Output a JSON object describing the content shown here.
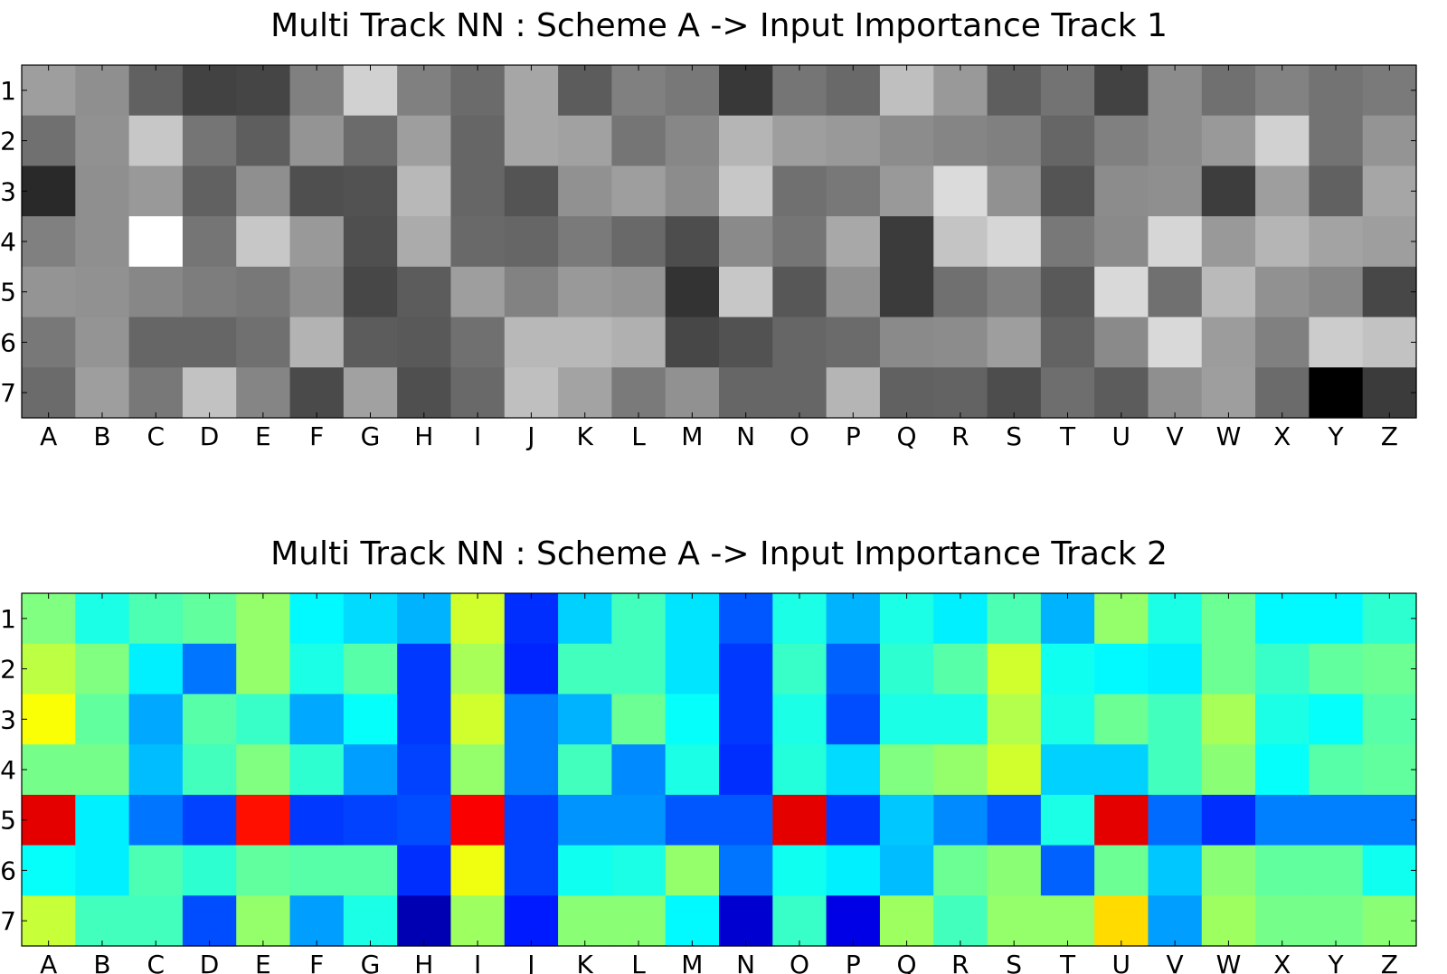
{
  "chart_data": [
    {
      "type": "heatmap",
      "title": "Multi Track NN : Scheme A -> Input Importance Track 1",
      "colormap": "gray",
      "x_categories": [
        "A",
        "B",
        "C",
        "D",
        "E",
        "F",
        "G",
        "H",
        "I",
        "J",
        "K",
        "L",
        "M",
        "N",
        "O",
        "P",
        "Q",
        "R",
        "S",
        "T",
        "U",
        "V",
        "W",
        "X",
        "Y",
        "Z"
      ],
      "y_categories": [
        "1",
        "2",
        "3",
        "4",
        "5",
        "6",
        "7"
      ],
      "value_range": [
        0,
        1
      ],
      "values": [
        [
          0.62,
          0.56,
          0.38,
          0.26,
          0.27,
          0.5,
          0.82,
          0.5,
          0.42,
          0.65,
          0.36,
          0.5,
          0.47,
          0.22,
          0.46,
          0.41,
          0.75,
          0.6,
          0.37,
          0.45,
          0.26,
          0.55,
          0.44,
          0.51,
          0.45,
          0.48
        ],
        [
          0.44,
          0.57,
          0.78,
          0.46,
          0.37,
          0.58,
          0.42,
          0.62,
          0.4,
          0.65,
          0.63,
          0.46,
          0.53,
          0.71,
          0.62,
          0.6,
          0.55,
          0.52,
          0.5,
          0.4,
          0.5,
          0.55,
          0.6,
          0.82,
          0.45,
          0.58
        ],
        [
          0.16,
          0.56,
          0.6,
          0.38,
          0.56,
          0.31,
          0.32,
          0.72,
          0.4,
          0.33,
          0.57,
          0.62,
          0.55,
          0.78,
          0.44,
          0.47,
          0.6,
          0.86,
          0.57,
          0.33,
          0.55,
          0.56,
          0.24,
          0.62,
          0.38,
          0.65
        ],
        [
          0.5,
          0.56,
          1.0,
          0.46,
          0.78,
          0.6,
          0.31,
          0.67,
          0.41,
          0.4,
          0.48,
          0.41,
          0.3,
          0.54,
          0.46,
          0.66,
          0.23,
          0.77,
          0.84,
          0.47,
          0.54,
          0.84,
          0.6,
          0.71,
          0.64,
          0.62
        ],
        [
          0.58,
          0.57,
          0.53,
          0.49,
          0.47,
          0.56,
          0.28,
          0.36,
          0.62,
          0.51,
          0.6,
          0.58,
          0.2,
          0.78,
          0.34,
          0.57,
          0.23,
          0.44,
          0.5,
          0.35,
          0.85,
          0.44,
          0.73,
          0.57,
          0.53,
          0.28
        ],
        [
          0.47,
          0.58,
          0.4,
          0.4,
          0.44,
          0.7,
          0.36,
          0.35,
          0.44,
          0.72,
          0.72,
          0.69,
          0.28,
          0.32,
          0.4,
          0.42,
          0.54,
          0.55,
          0.62,
          0.39,
          0.54,
          0.85,
          0.61,
          0.5,
          0.8,
          0.76
        ],
        [
          0.42,
          0.62,
          0.47,
          0.76,
          0.52,
          0.29,
          0.63,
          0.31,
          0.41,
          0.75,
          0.64,
          0.48,
          0.57,
          0.4,
          0.4,
          0.71,
          0.38,
          0.39,
          0.3,
          0.43,
          0.36,
          0.56,
          0.62,
          0.42,
          0.0,
          0.23
        ]
      ]
    },
    {
      "type": "heatmap",
      "title": "Multi Track NN : Scheme A -> Input Importance Track 2",
      "colormap": "jet",
      "x_categories": [
        "A",
        "B",
        "C",
        "D",
        "E",
        "F",
        "G",
        "H",
        "I",
        "J",
        "K",
        "L",
        "M",
        "N",
        "O",
        "P",
        "Q",
        "R",
        "S",
        "T",
        "U",
        "V",
        "W",
        "X",
        "Y",
        "Z"
      ],
      "y_categories": [
        "1",
        "2",
        "3",
        "4",
        "5",
        "6",
        "7"
      ],
      "value_range": [
        0,
        1
      ],
      "values": [
        [
          0.5,
          0.4,
          0.45,
          0.47,
          0.52,
          0.37,
          0.34,
          0.3,
          0.58,
          0.17,
          0.33,
          0.44,
          0.35,
          0.21,
          0.4,
          0.3,
          0.4,
          0.36,
          0.45,
          0.3,
          0.52,
          0.4,
          0.48,
          0.37,
          0.37,
          0.42
        ],
        [
          0.56,
          0.5,
          0.36,
          0.24,
          0.52,
          0.4,
          0.46,
          0.18,
          0.54,
          0.16,
          0.44,
          0.44,
          0.35,
          0.18,
          0.43,
          0.22,
          0.42,
          0.46,
          0.58,
          0.39,
          0.37,
          0.36,
          0.48,
          0.43,
          0.47,
          0.48
        ],
        [
          0.62,
          0.47,
          0.29,
          0.46,
          0.43,
          0.29,
          0.38,
          0.18,
          0.58,
          0.25,
          0.3,
          0.48,
          0.38,
          0.18,
          0.4,
          0.2,
          0.4,
          0.4,
          0.55,
          0.4,
          0.48,
          0.44,
          0.54,
          0.4,
          0.38,
          0.46
        ],
        [
          0.49,
          0.49,
          0.31,
          0.44,
          0.5,
          0.42,
          0.28,
          0.19,
          0.52,
          0.25,
          0.44,
          0.26,
          0.4,
          0.17,
          0.41,
          0.34,
          0.5,
          0.52,
          0.58,
          0.33,
          0.33,
          0.44,
          0.51,
          0.38,
          0.46,
          0.47
        ],
        [
          0.9,
          0.36,
          0.24,
          0.19,
          0.86,
          0.18,
          0.19,
          0.2,
          0.88,
          0.19,
          0.27,
          0.27,
          0.21,
          0.21,
          0.9,
          0.18,
          0.32,
          0.26,
          0.21,
          0.4,
          0.9,
          0.23,
          0.17,
          0.25,
          0.25,
          0.25
        ],
        [
          0.38,
          0.36,
          0.45,
          0.42,
          0.47,
          0.46,
          0.46,
          0.17,
          0.61,
          0.19,
          0.39,
          0.4,
          0.52,
          0.24,
          0.39,
          0.36,
          0.31,
          0.48,
          0.51,
          0.22,
          0.48,
          0.32,
          0.51,
          0.47,
          0.47,
          0.39
        ],
        [
          0.57,
          0.44,
          0.44,
          0.2,
          0.52,
          0.28,
          0.4,
          0.05,
          0.53,
          0.15,
          0.51,
          0.51,
          0.37,
          0.08,
          0.43,
          0.1,
          0.53,
          0.44,
          0.52,
          0.52,
          0.66,
          0.28,
          0.53,
          0.49,
          0.49,
          0.51
        ]
      ]
    }
  ]
}
